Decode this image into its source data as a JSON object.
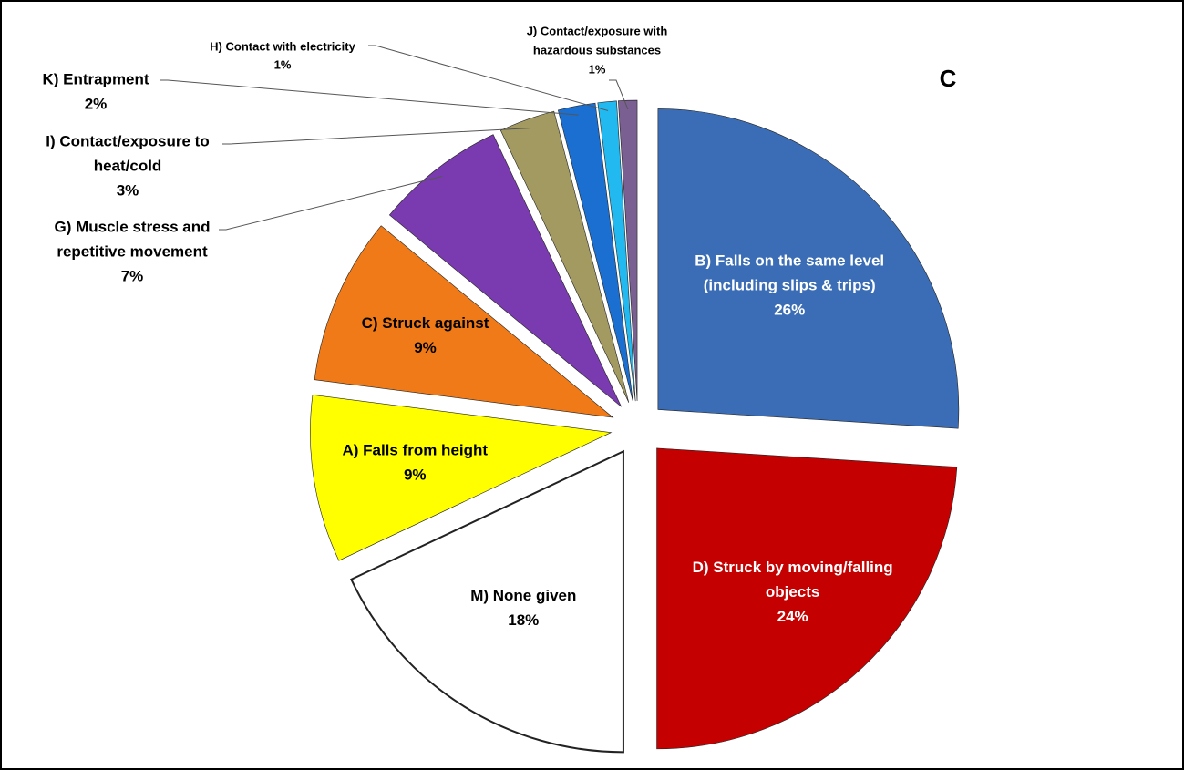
{
  "chart_data": {
    "type": "pie",
    "title": "C",
    "categories": [
      [
        "B) Falls on the same level",
        "(including slips & trips)"
      ],
      [
        "D) Struck by moving/falling",
        "objects"
      ],
      [
        "M) None given"
      ],
      [
        "A) Falls from height"
      ],
      [
        "C) Struck against"
      ],
      [
        "G) Muscle stress and",
        "repetitive movement"
      ],
      [
        "I)  Contact/exposure to",
        "heat/cold"
      ],
      [
        "K) Entrapment"
      ],
      [
        "H) Contact with electricity"
      ],
      [
        "J) Contact/exposure with",
        "hazardous substances"
      ]
    ],
    "values": [
      26,
      24,
      18,
      9,
      9,
      7,
      3,
      2,
      1,
      1
    ],
    "value_labels": [
      "26%",
      "24%",
      "18%",
      "9%",
      "9%",
      "7%",
      "3%",
      "2%",
      "1%",
      "1%"
    ],
    "colors": [
      "#3a6db5",
      "#c40000",
      "#ffffff",
      "#ffff00",
      "#f07a18",
      "#7b3bb0",
      "#a39a62",
      "#1a6fd0",
      "#22b8f0",
      "#7a5f92"
    ]
  }
}
